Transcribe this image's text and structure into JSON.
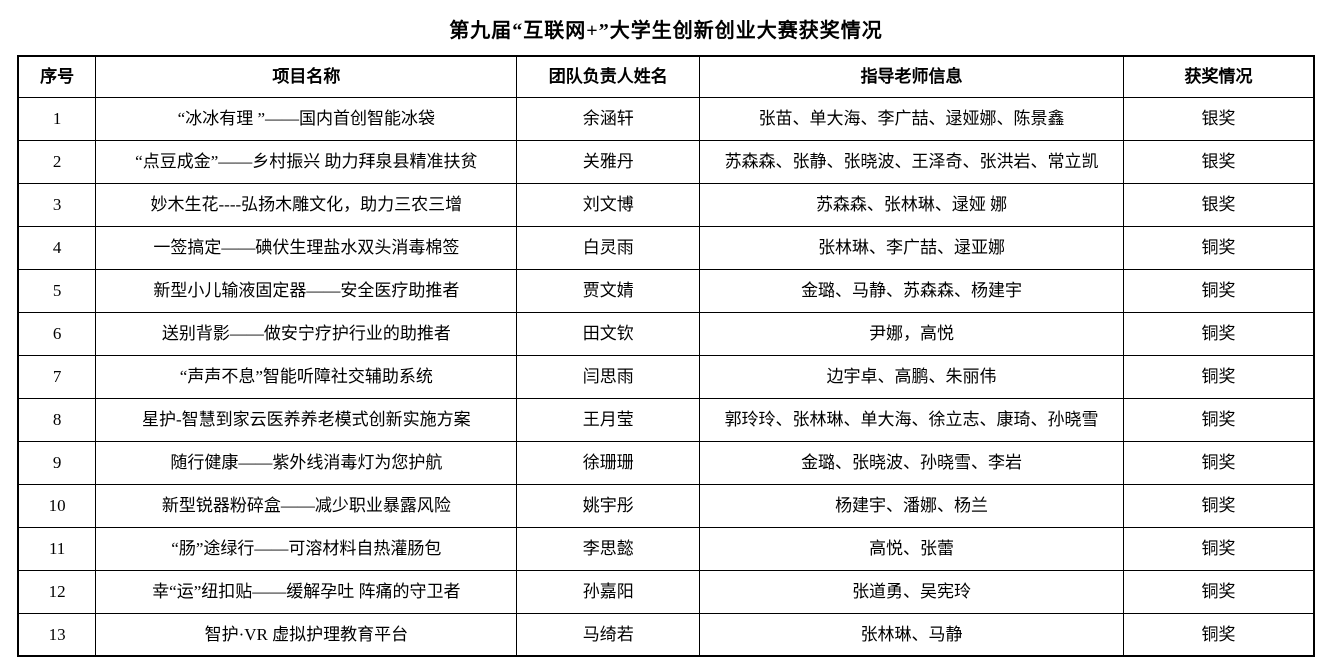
{
  "page": {
    "title": "第九届“互联网+”大学生创新创业大赛获奖情况"
  },
  "table": {
    "columns": [
      "序号",
      "项目名称",
      "团队负责人姓名",
      "指导老师信息",
      "获奖情况"
    ],
    "rows": [
      {
        "no": "1",
        "project": "“冰冰有理 ”——国内首创智能冰袋",
        "leader": "余涵轩",
        "advisors": "张苗、单大海、李广喆、逯娅娜、陈景鑫",
        "award": "银奖"
      },
      {
        "no": "2",
        "project": "“点豆成金”——乡村振兴 助力拜泉县精准扶贫",
        "leader": "关雅丹",
        "advisors": "苏森森、张静、张晓波、王泽奇、张洪岩、常立凯",
        "award": "银奖"
      },
      {
        "no": "3",
        "project": "妙木生花----弘扬木雕文化，助力三农三增",
        "leader": "刘文博",
        "advisors": "苏森森、张林琳、逯娅 娜",
        "award": "银奖"
      },
      {
        "no": "4",
        "project": "一签搞定——碘伏生理盐水双头消毒棉签",
        "leader": "白灵雨",
        "advisors": "张林琳、李广喆、逯亚娜",
        "award": "铜奖"
      },
      {
        "no": "5",
        "project": "新型小儿输液固定器——安全医疗助推者",
        "leader": "贾文婧",
        "advisors": "金璐、马静、苏森森、杨建宇",
        "award": "铜奖"
      },
      {
        "no": "6",
        "project": "送别背影——做安宁疗护行业的助推者",
        "leader": "田文钦",
        "advisors": "尹娜，高悦",
        "award": "铜奖"
      },
      {
        "no": "7",
        "project": "“声声不息”智能听障社交辅助系统",
        "leader": "闫思雨",
        "advisors": "边宇卓、高鹏、朱丽伟",
        "award": "铜奖"
      },
      {
        "no": "8",
        "project": "星护-智慧到家云医养养老模式创新实施方案",
        "leader": "王月莹",
        "advisors": "郭玲玲、张林琳、单大海、徐立志、康琦、孙晓雪",
        "award": "铜奖"
      },
      {
        "no": "9",
        "project": "随行健康——紫外线消毒灯为您护航",
        "leader": "徐珊珊",
        "advisors": "金璐、张晓波、孙晓雪、李岩",
        "award": "铜奖"
      },
      {
        "no": "10",
        "project": "新型锐器粉碎盒——减少职业暴露风险",
        "leader": "姚宇彤",
        "advisors": "杨建宇、潘娜、杨兰",
        "award": "铜奖"
      },
      {
        "no": "11",
        "project": "“肠”途绿行——可溶材料自热灌肠包",
        "leader": "李思懿",
        "advisors": "高悦、张蕾",
        "award": "铜奖"
      },
      {
        "no": "12",
        "project": "幸“运”纽扣贴——缓解孕吐 阵痛的守卫者",
        "leader": "孙嘉阳",
        "advisors": "张道勇、吴宪玲",
        "award": "铜奖"
      },
      {
        "no": "13",
        "project": "智护·VR 虚拟护理教育平台",
        "leader": "马绮若",
        "advisors": "张林琳、马静",
        "award": "铜奖"
      }
    ]
  }
}
